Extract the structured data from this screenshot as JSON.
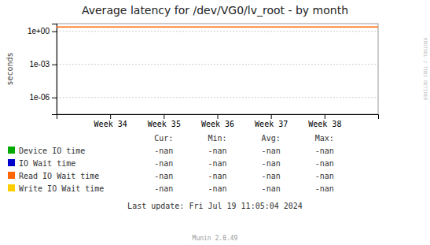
{
  "chart_data": {
    "type": "line",
    "title": "Average latency for /dev/VG0/lv_root - by month",
    "y_label": "seconds",
    "categories": [
      "Week 34",
      "Week 35",
      "Week 36",
      "Week 37",
      "Week 38"
    ],
    "log": "y",
    "ylim": [
      3e-08,
      5
    ],
    "yticks": [
      {
        "value": 1e-06,
        "label": "1e-06"
      },
      {
        "value": 0.001,
        "label": "1e-03"
      },
      {
        "value": 1,
        "label": "1e+00"
      }
    ],
    "grid": true,
    "hline": {
      "y": 2.5,
      "color": "#ff6600"
    },
    "series": [
      {
        "name": "Device IO time",
        "color": "#00aa00"
      },
      {
        "name": "IO Wait time",
        "color": "#0000cc"
      },
      {
        "name": "Read IO Wait time",
        "color": "#ff6600"
      },
      {
        "name": "Write IO Wait time",
        "color": "#ffcc00"
      }
    ],
    "table": {
      "headers": [
        "Cur:",
        "Min:",
        "Avg:",
        "Max:"
      ],
      "rows": [
        [
          "-nan",
          "-nan",
          "-nan",
          "-nan"
        ],
        [
          "-nan",
          "-nan",
          "-nan",
          "-nan"
        ],
        [
          "-nan",
          "-nan",
          "-nan",
          "-nan"
        ],
        [
          "-nan",
          "-nan",
          "-nan",
          "-nan"
        ]
      ]
    },
    "footer": "Last update: Fri Jul 19 11:05:04 2024",
    "credit": "Munin 2.0.49",
    "watermark": "RRDTOOL / TOBI OETIKER"
  }
}
